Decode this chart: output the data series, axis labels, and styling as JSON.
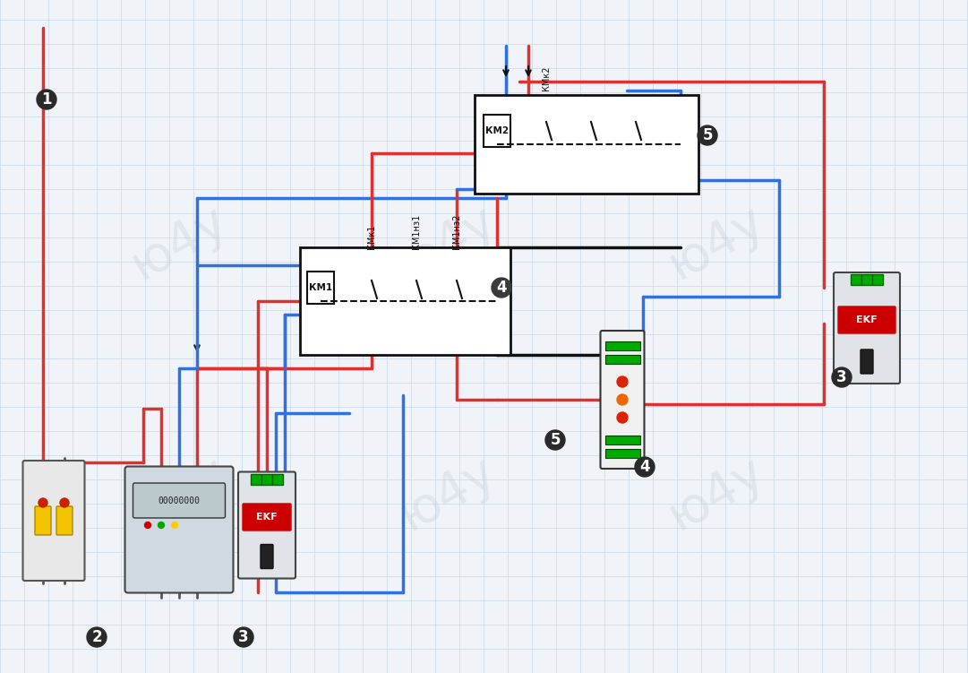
{
  "background_color": "#f0f4f8",
  "grid_color": "#c8d8e8",
  "title": "",
  "fig_width": 10.81,
  "fig_height": 7.51,
  "dpi": 100,
  "red_wire": "#e03030",
  "blue_wire": "#3070e0",
  "black_wire": "#111111",
  "component_fill": "#ffffff",
  "component_border": "#111111",
  "label_color": "#111111",
  "badge_bg": "#2a2a2a",
  "badge_fg": "#ffffff",
  "watermark_color": "#c0c8d0",
  "labels": {
    "KM1": "КМк1",
    "KM1n1": "КМ1нз1",
    "KM1n2": "КМ1нз2",
    "KM2": "КМк2",
    "coil1": "КМ1",
    "coil2": "КМ2",
    "badge1": "1",
    "badge2": "2",
    "badge3": "3",
    "badge4": "4",
    "badge5": "5"
  }
}
